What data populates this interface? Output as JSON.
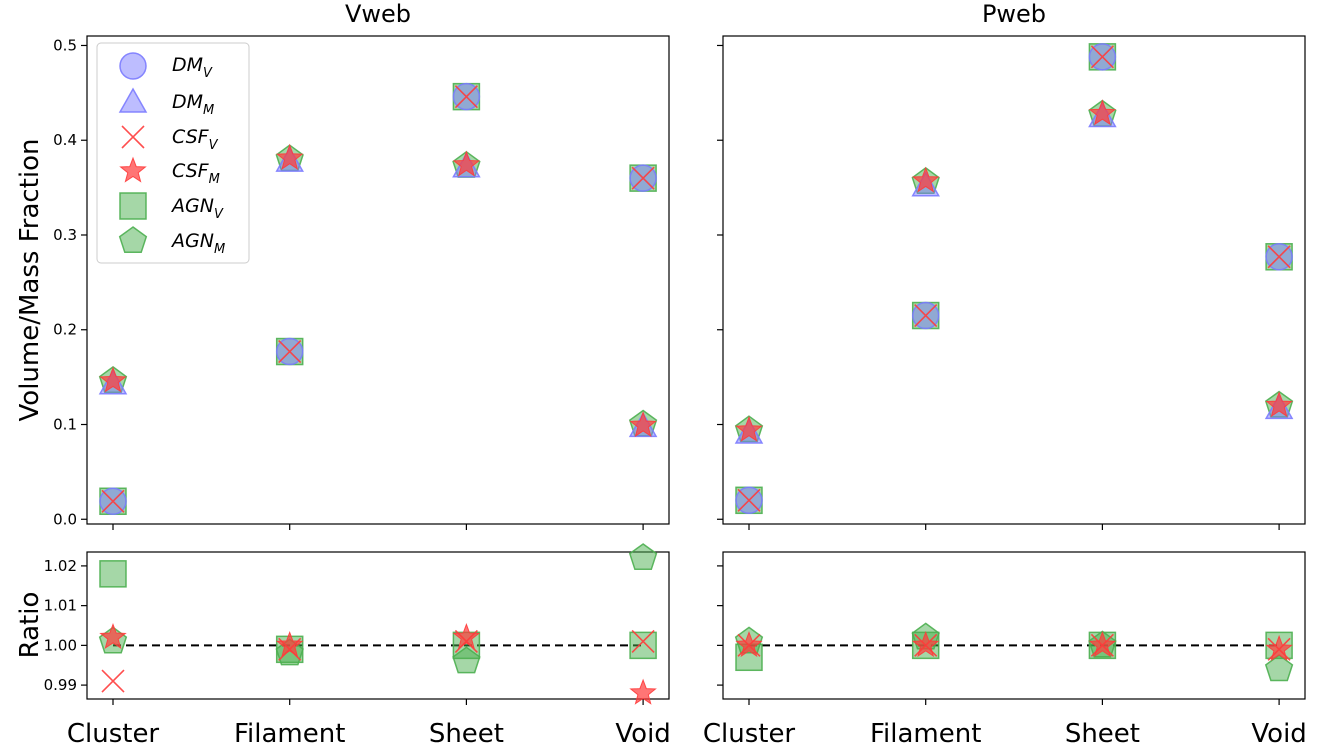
{
  "chart_data": {
    "type": "scatter",
    "categories": [
      "Cluster",
      "Filament",
      "Sheet",
      "Void"
    ],
    "ylabel_top": "Volume/Mass Fraction",
    "ylabel_bottom": "Ratio",
    "legend": {
      "placement": "top-left of Vweb panel",
      "entries": [
        {
          "base": "DM",
          "sub": "V",
          "marker": "circle",
          "color": "#7b7bff"
        },
        {
          "base": "DM",
          "sub": "M",
          "marker": "triangle",
          "color": "#7b7bff"
        },
        {
          "base": "CSF",
          "sub": "V",
          "marker": "x",
          "color": "#ff3b3b"
        },
        {
          "base": "CSF",
          "sub": "M",
          "marker": "star",
          "color": "#ff3b3b"
        },
        {
          "base": "AGN",
          "sub": "V",
          "marker": "square",
          "color": "#4caf50"
        },
        {
          "base": "AGN",
          "sub": "M",
          "marker": "pentagon",
          "color": "#4caf50"
        }
      ]
    },
    "fraction_ylim": [
      -0.005,
      0.51
    ],
    "fraction_yticks": [
      "0.0",
      "0.1",
      "0.2",
      "0.3",
      "0.4",
      "0.5"
    ],
    "ratio_ylim": [
      0.9865,
      1.0235
    ],
    "ratio_yticks": [
      "0.99",
      "1.00",
      "1.01",
      "1.02"
    ],
    "ratio_reference": 1.0,
    "panels": [
      {
        "title": "Vweb",
        "fraction": {
          "DM_V": [
            0.019,
            0.177,
            0.446,
            0.36
          ],
          "DM_M": [
            0.143,
            0.378,
            0.372,
            0.098
          ],
          "CSF_V": [
            0.019,
            0.177,
            0.446,
            0.36
          ],
          "CSF_M": [
            0.146,
            0.381,
            0.374,
            0.099
          ],
          "AGN_V": [
            0.019,
            0.177,
            0.446,
            0.36
          ],
          "AGN_M": [
            0.146,
            0.38,
            0.373,
            0.1
          ]
        },
        "ratio": {
          "CSF_V": [
            0.991,
            0.999,
            1.001,
            1.001
          ],
          "CSF_M": [
            1.002,
            1.0,
            1.002,
            0.988
          ],
          "AGN_V": [
            1.018,
            0.999,
            1.0,
            1.0
          ],
          "AGN_M": [
            1.001,
            0.998,
            0.996,
            1.022
          ]
        }
      },
      {
        "title": "Pweb",
        "fraction": {
          "DM_V": [
            0.02,
            0.215,
            0.488,
            0.277
          ],
          "DM_M": [
            0.091,
            0.352,
            0.425,
            0.117
          ],
          "CSF_V": [
            0.02,
            0.215,
            0.488,
            0.277
          ],
          "CSF_M": [
            0.094,
            0.357,
            0.428,
            0.12
          ],
          "AGN_V": [
            0.02,
            0.215,
            0.488,
            0.277
          ],
          "AGN_M": [
            0.094,
            0.356,
            0.427,
            0.12
          ]
        },
        "ratio": {
          "CSF_V": [
            1.0,
            1.0,
            1.0,
            0.999
          ],
          "CSF_M": [
            1.0,
            1.0,
            1.0,
            0.999
          ],
          "AGN_V": [
            0.997,
            1.0,
            1.0,
            1.0
          ],
          "AGN_M": [
            1.001,
            1.002,
            1.0,
            0.994
          ]
        }
      }
    ]
  }
}
